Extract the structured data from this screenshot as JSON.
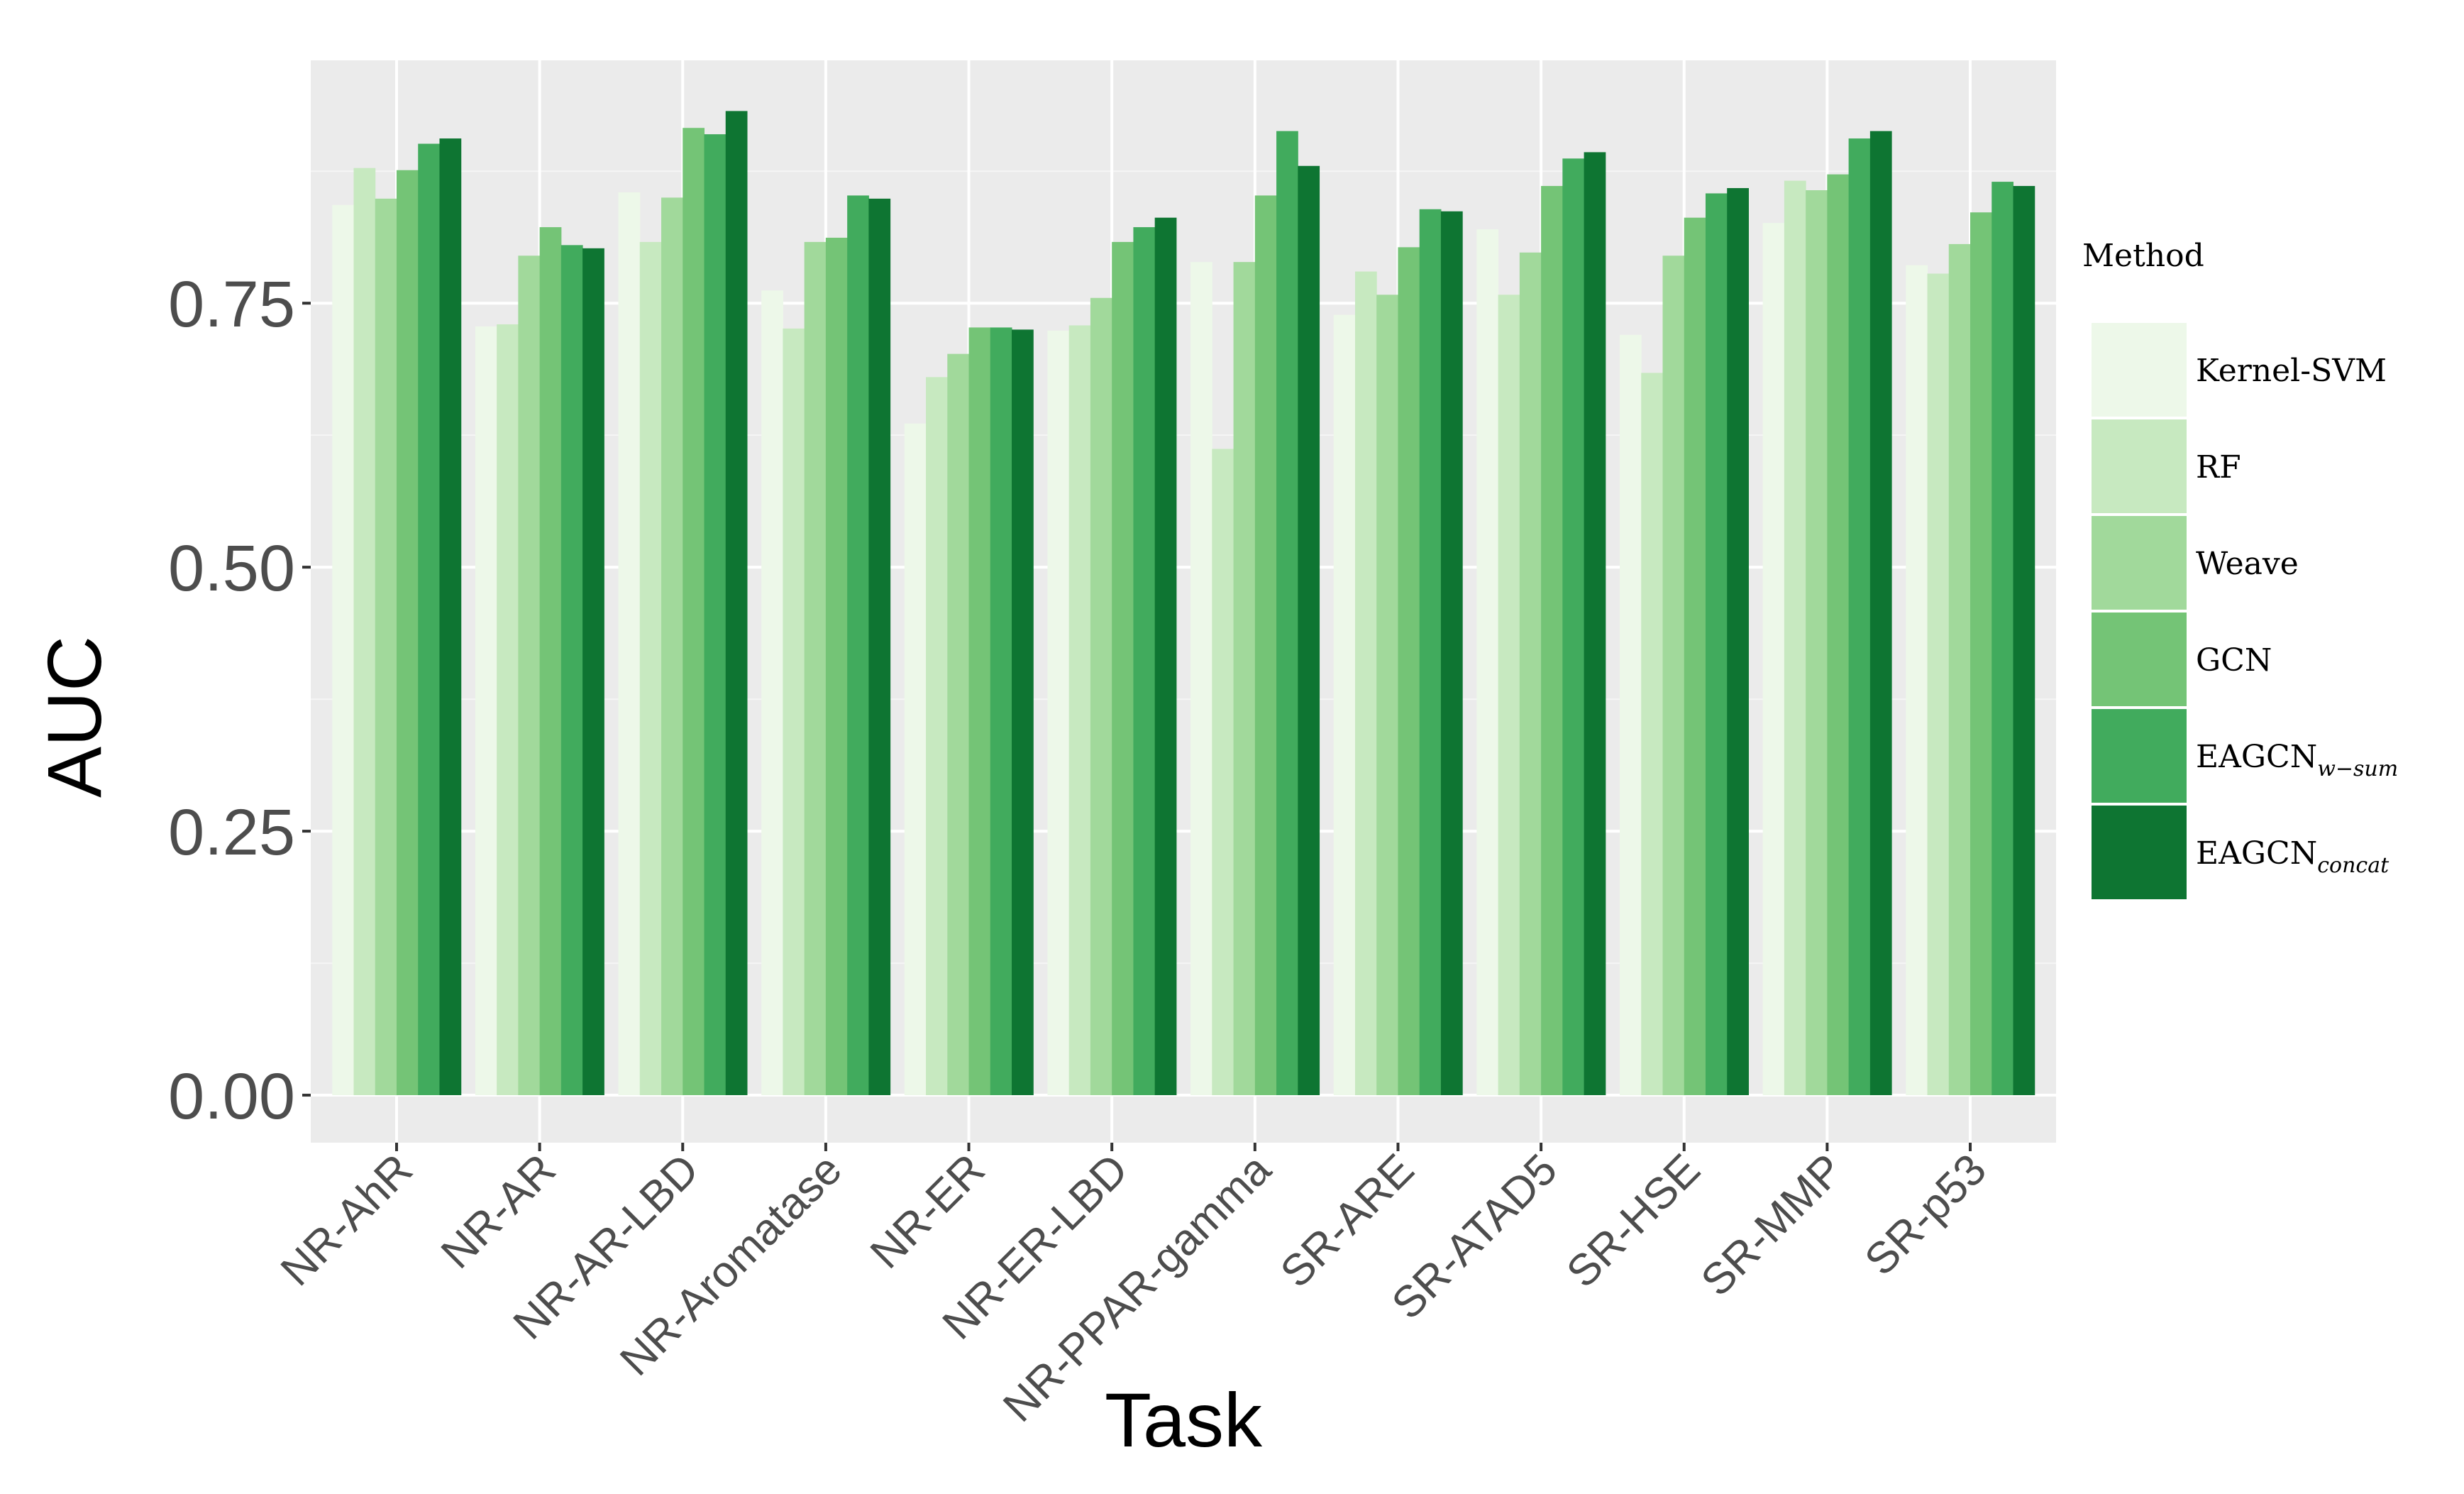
{
  "chart_data": {
    "type": "bar",
    "xlabel": "Task",
    "ylabel": "AUC",
    "ylim": [
      -0.045,
      0.98
    ],
    "yticks": [
      {
        "value": 0.0,
        "label": "0.00"
      },
      {
        "value": 0.25,
        "label": "0.25"
      },
      {
        "value": 0.5,
        "label": "0.50"
      },
      {
        "value": 0.75,
        "label": "0.75"
      }
    ],
    "grid": true,
    "legend": {
      "title": "Method",
      "position": "right"
    },
    "categories": [
      "NR-AhR",
      "NR-AR",
      "NR-AR-LBD",
      "NR-Aromatase",
      "NR-ER",
      "NR-ER-LBD",
      "NR-PPAR-gamma",
      "SR-ARE",
      "SR-ATAD5",
      "SR-HSE",
      "SR-MMP",
      "SR-p53"
    ],
    "series": [
      {
        "name": "Kernel-SVM",
        "base": "Kernel-SVM",
        "sub": "",
        "color": "#edf8e9",
        "values": [
          0.843,
          0.728,
          0.855,
          0.762,
          0.636,
          0.724,
          0.789,
          0.739,
          0.82,
          0.72,
          0.826,
          0.786
        ]
      },
      {
        "name": "RF",
        "base": "RF",
        "sub": "",
        "color": "#c7e9c0",
        "values": [
          0.878,
          0.73,
          0.808,
          0.726,
          0.68,
          0.729,
          0.612,
          0.78,
          0.758,
          0.684,
          0.866,
          0.778
        ]
      },
      {
        "name": "Weave",
        "base": "Weave",
        "sub": "",
        "color": "#a1d99b",
        "values": [
          0.849,
          0.795,
          0.85,
          0.808,
          0.702,
          0.755,
          0.789,
          0.758,
          0.798,
          0.795,
          0.857,
          0.806
        ]
      },
      {
        "name": "GCN",
        "base": "GCN",
        "sub": "",
        "color": "#74c476",
        "values": [
          0.876,
          0.822,
          0.916,
          0.812,
          0.727,
          0.808,
          0.852,
          0.803,
          0.861,
          0.831,
          0.872,
          0.836
        ]
      },
      {
        "name": "EAGCNw−sum",
        "base": "EAGCN",
        "sub": "w−sum",
        "color": "#41ab5d",
        "values": [
          0.901,
          0.805,
          0.91,
          0.852,
          0.727,
          0.822,
          0.913,
          0.839,
          0.887,
          0.854,
          0.906,
          0.865
        ]
      },
      {
        "name": "EAGCNconcat",
        "base": "EAGCN",
        "sub": "concat",
        "color": "#0e7532",
        "values": [
          0.906,
          0.802,
          0.932,
          0.849,
          0.725,
          0.831,
          0.88,
          0.837,
          0.893,
          0.859,
          0.913,
          0.861
        ]
      }
    ]
  }
}
